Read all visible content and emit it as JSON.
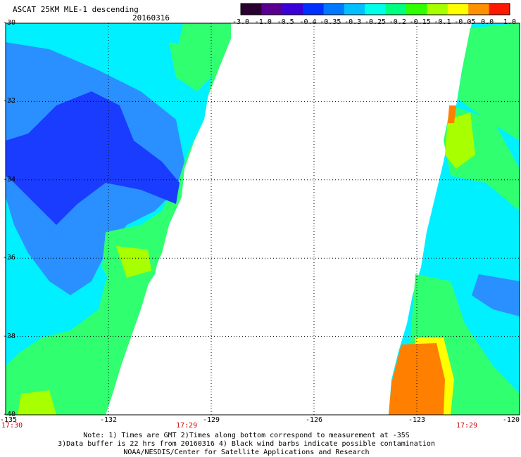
{
  "header": {
    "title": "ASCAT 25KM MLE-1 descending",
    "date": "20160316"
  },
  "colorbar": {
    "labels": [
      "-3.0",
      "-1.0",
      "-0.5",
      "-0.4",
      "-0.35",
      "-0.3",
      "-0.25",
      "-0.2",
      "-0.15",
      "-0.1",
      "-0.05",
      "0.0",
      "1.0"
    ],
    "colors": [
      "#2a0030",
      "#5a0090",
      "#3a00d8",
      "#0030ff",
      "#0078ff",
      "#00c0ff",
      "#00ffe8",
      "#00ff80",
      "#30ff00",
      "#a8ff00",
      "#ffff00",
      "#ff9000",
      "#ff1800"
    ]
  },
  "axes": {
    "y_labels": [
      "-30",
      "-32",
      "-34",
      "-36",
      "-38",
      "-40"
    ],
    "x_labels": [
      "-135",
      "-132",
      "-129",
      "-126",
      "-123",
      "-120"
    ],
    "times": [
      "17:30",
      "17:29",
      "17:29"
    ]
  },
  "map": {
    "lon_range": [
      -135,
      -120
    ],
    "lat_range": [
      -40,
      -30
    ],
    "swath_colors": {
      "blue": "#1a3cff",
      "light_blue": "#2a90ff",
      "cyan": "#00f0ff",
      "green": "#30ff70",
      "yellow_green": "#a8ff00",
      "orange": "#ff8000"
    }
  },
  "notes": [
    "Note: 1) Times are GMT 2)Times along bottom correspond to measurement at -35S",
    "3)Data buffer is 22 hrs from 20160316 4) Black wind barbs indicate possible contamination",
    "NOAA/NESDIS/Center for Satellite Applications and Research"
  ]
}
